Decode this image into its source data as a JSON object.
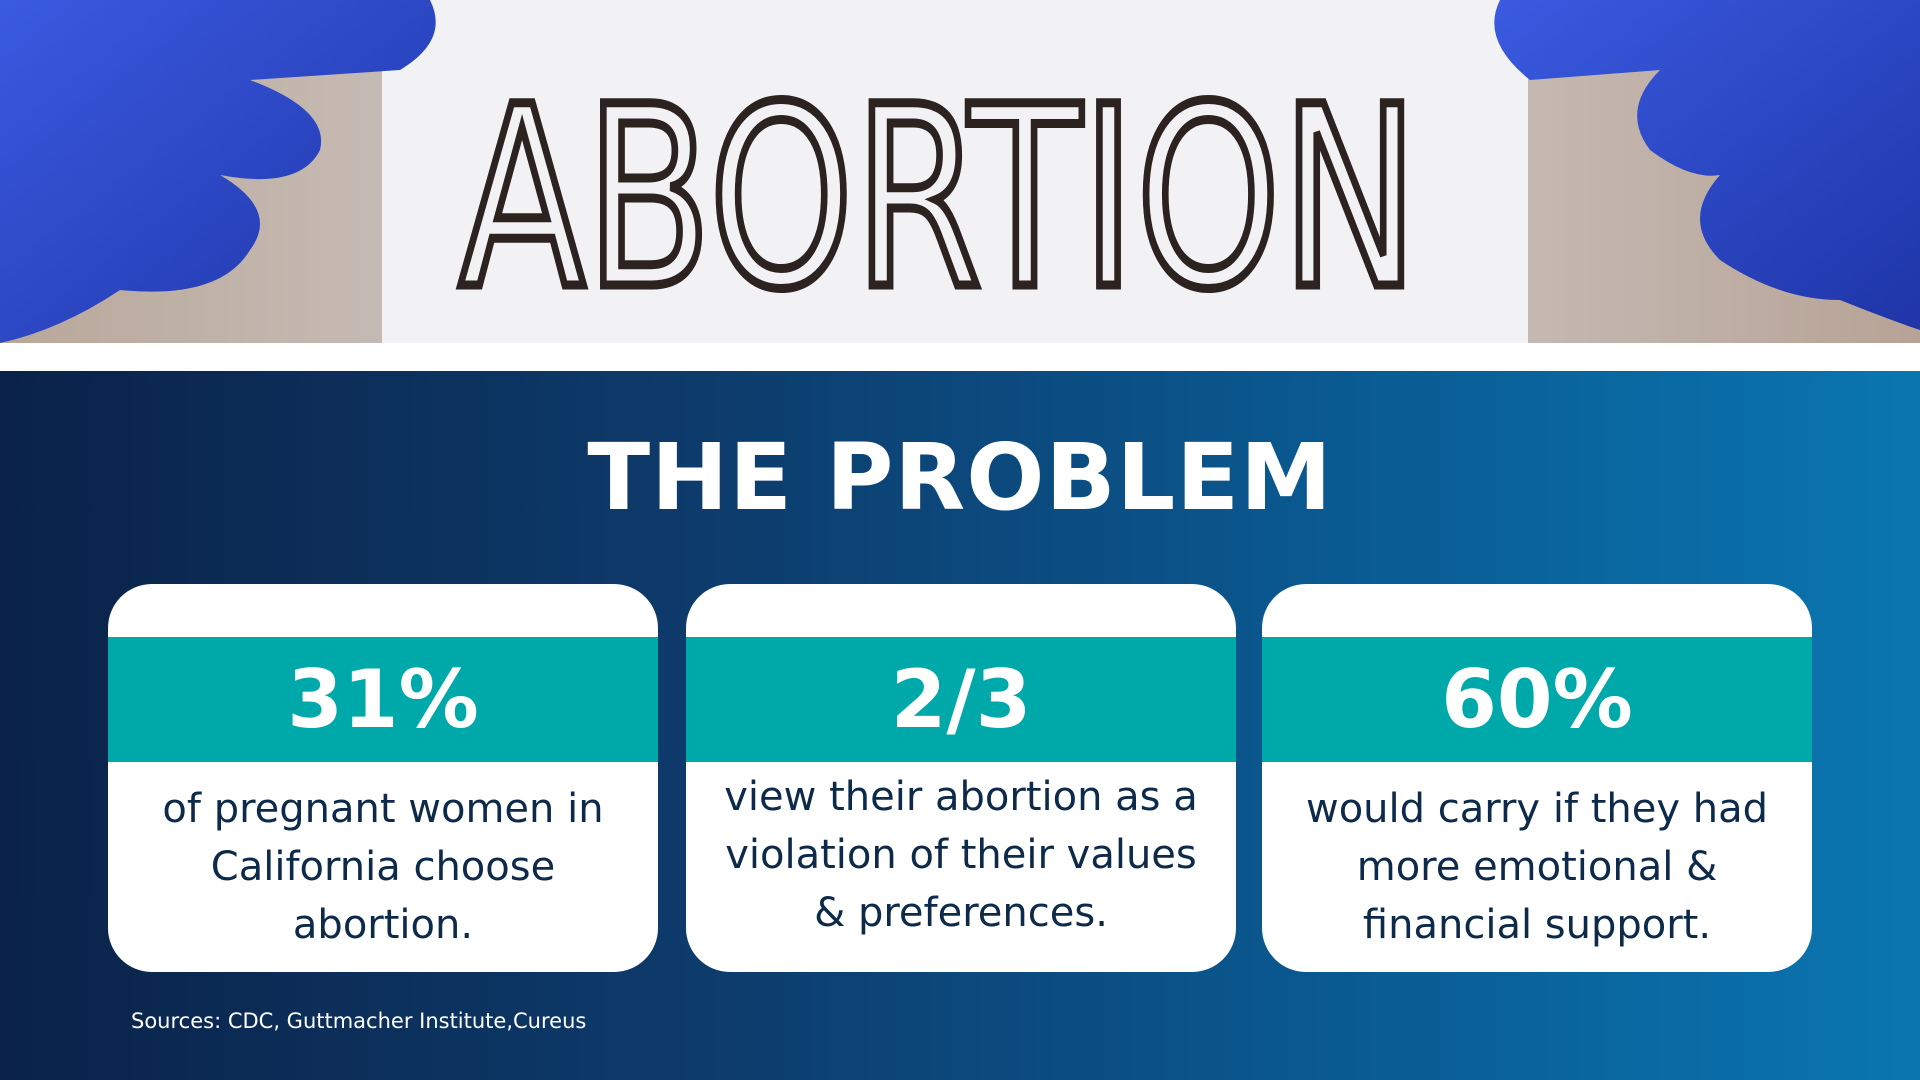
{
  "sign": "ABORTION",
  "title": "THE PROBLEM",
  "cards": [
    {
      "stat": "31%",
      "text": "of pregnant women in California choose abortion."
    },
    {
      "stat": "2/3",
      "text": "view their abortion as a violation of their values & preferences."
    },
    {
      "stat": "60%",
      "text": "would carry if they had more emotional & financial support."
    }
  ],
  "sources": "Sources: CDC, Guttmacher Institute,Cureus"
}
